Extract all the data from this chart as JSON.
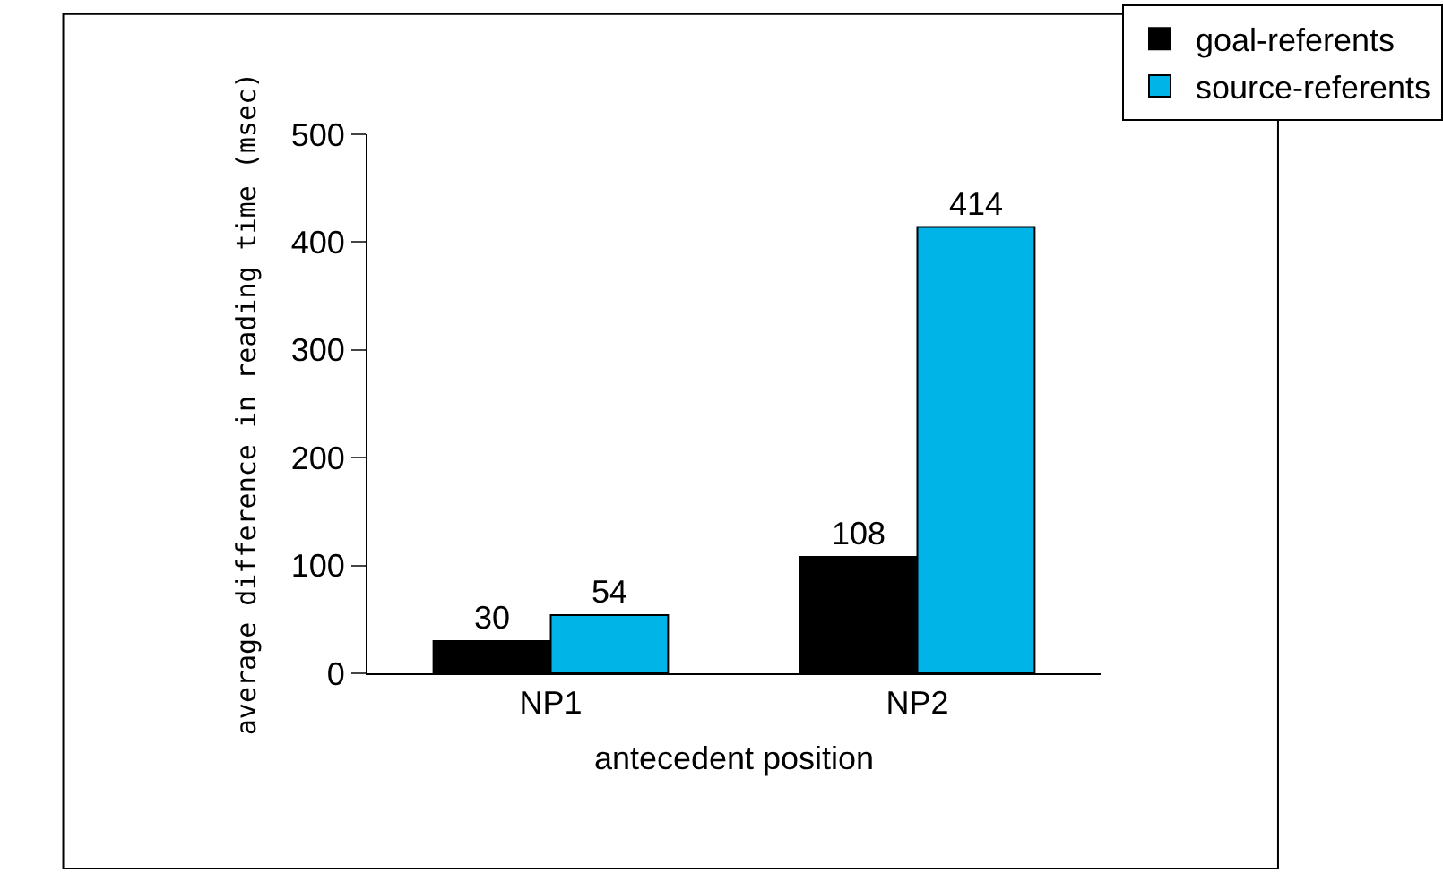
{
  "chart_data": {
    "type": "bar",
    "xlabel": "antecedent position",
    "ylabel": "average difference in reading time (msec)",
    "categories": [
      "NP1",
      "NP2"
    ],
    "series": [
      {
        "name": "goal-referents",
        "color": "#000000",
        "values": [
          30,
          108
        ]
      },
      {
        "name": "source-referents",
        "color": "#00b4e8",
        "values": [
          54,
          414
        ]
      }
    ],
    "ylim": [
      0,
      500
    ],
    "yticks": [
      0,
      100,
      200,
      300,
      400,
      500
    ],
    "legend": "top right",
    "data_labels": true
  }
}
